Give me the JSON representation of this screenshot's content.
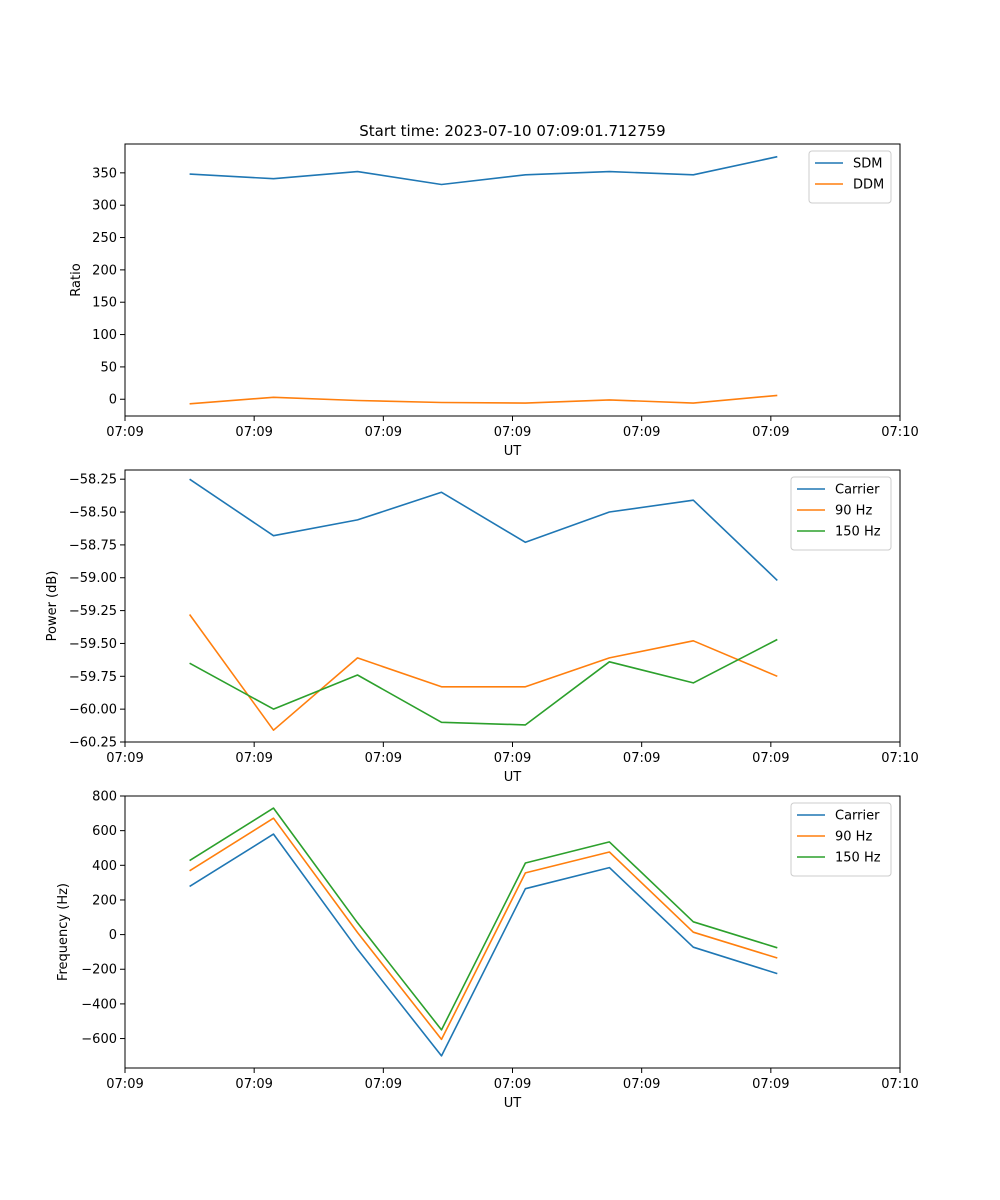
{
  "figure": {
    "title": "Start time: 2023-07-10 07:09:01.712759"
  },
  "colors": {
    "blue": "#1f77b4",
    "orange": "#ff7f0e",
    "green": "#2ca02c"
  },
  "chart_data": [
    {
      "type": "line",
      "title": "Start time: 2023-07-10 07:09:01.712759",
      "xlabel": "UT",
      "ylabel": "Ratio",
      "xlim": [
        -0.5,
        5.5
      ],
      "ylim": [
        -25.9,
        394.6
      ],
      "x_ticks": [
        -0.5,
        0.5,
        1.5,
        2.5,
        3.5,
        4.5,
        5.5
      ],
      "x_tick_labels": [
        "07:09",
        "07:09",
        "07:09",
        "07:09",
        "07:09",
        "07:09",
        "07:10"
      ],
      "y_ticks": [
        0,
        50,
        100,
        150,
        200,
        250,
        300,
        350
      ],
      "y_tick_labels": [
        "0",
        "50",
        "100",
        "150",
        "200",
        "250",
        "300",
        "350"
      ],
      "legend": "top-right",
      "x": [
        0,
        0.65,
        1.3,
        1.95,
        2.6,
        3.25,
        3.9,
        4.55
      ],
      "series": [
        {
          "name": "SDM",
          "color": "#1f77b4",
          "values": [
            348,
            341,
            352,
            332,
            347,
            352,
            347,
            375
          ]
        },
        {
          "name": "DDM",
          "color": "#ff7f0e",
          "values": [
            -7,
            3,
            -2,
            -5,
            -6,
            -1,
            -6,
            6
          ]
        }
      ]
    },
    {
      "type": "line",
      "xlabel": "UT",
      "ylabel": "Power (dB)",
      "xlim": [
        -0.5,
        5.5
      ],
      "ylim": [
        -60.25,
        -58.18
      ],
      "x_ticks": [
        -0.5,
        0.5,
        1.5,
        2.5,
        3.5,
        4.5,
        5.5
      ],
      "x_tick_labels": [
        "07:09",
        "07:09",
        "07:09",
        "07:09",
        "07:09",
        "07:09",
        "07:10"
      ],
      "y_ticks": [
        -60.25,
        -60.0,
        -59.75,
        -59.5,
        -59.25,
        -59.0,
        -58.75,
        -58.5,
        -58.25
      ],
      "y_tick_labels": [
        "−60.25",
        "−60.00",
        "−59.75",
        "−59.50",
        "−59.25",
        "−59.00",
        "−58.75",
        "−58.50",
        "−58.25"
      ],
      "legend": "top-right",
      "x": [
        0,
        0.65,
        1.3,
        1.95,
        2.6,
        3.25,
        3.9,
        4.55
      ],
      "series": [
        {
          "name": "Carrier",
          "color": "#1f77b4",
          "values": [
            -58.25,
            -58.68,
            -58.56,
            -58.35,
            -58.73,
            -58.5,
            -58.41,
            -59.02
          ]
        },
        {
          "name": "90 Hz",
          "color": "#ff7f0e",
          "values": [
            -59.28,
            -60.16,
            -59.61,
            -59.83,
            -59.83,
            -59.61,
            -59.48,
            -59.75
          ]
        },
        {
          "name": "150 Hz",
          "color": "#2ca02c",
          "values": [
            -59.65,
            -60.0,
            -59.74,
            -60.1,
            -60.12,
            -59.64,
            -59.8,
            -59.47
          ]
        }
      ]
    },
    {
      "type": "line",
      "xlabel": "UT",
      "ylabel": "Frequency (Hz)",
      "xlim": [
        -0.5,
        5.5
      ],
      "ylim": [
        -770,
        800
      ],
      "x_ticks": [
        -0.5,
        0.5,
        1.5,
        2.5,
        3.5,
        4.5,
        5.5
      ],
      "x_tick_labels": [
        "07:09",
        "07:09",
        "07:09",
        "07:09",
        "07:09",
        "07:09",
        "07:10"
      ],
      "y_ticks": [
        -600,
        -400,
        -200,
        0,
        200,
        400,
        600,
        800
      ],
      "y_tick_labels": [
        "−600",
        "−400",
        "−200",
        "0",
        "200",
        "400",
        "600",
        "800"
      ],
      "legend": "top-right",
      "x": [
        0,
        0.65,
        1.3,
        1.95,
        2.6,
        3.25,
        3.9,
        4.55
      ],
      "series": [
        {
          "name": "Carrier",
          "color": "#1f77b4",
          "values": [
            278,
            580,
            -85,
            -700,
            265,
            387,
            -73,
            -225
          ]
        },
        {
          "name": "90 Hz",
          "color": "#ff7f0e",
          "values": [
            368,
            672,
            12,
            -605,
            356,
            477,
            14,
            -135
          ]
        },
        {
          "name": "150 Hz",
          "color": "#2ca02c",
          "values": [
            427,
            730,
            68,
            -550,
            413,
            535,
            74,
            -76
          ]
        }
      ]
    }
  ]
}
